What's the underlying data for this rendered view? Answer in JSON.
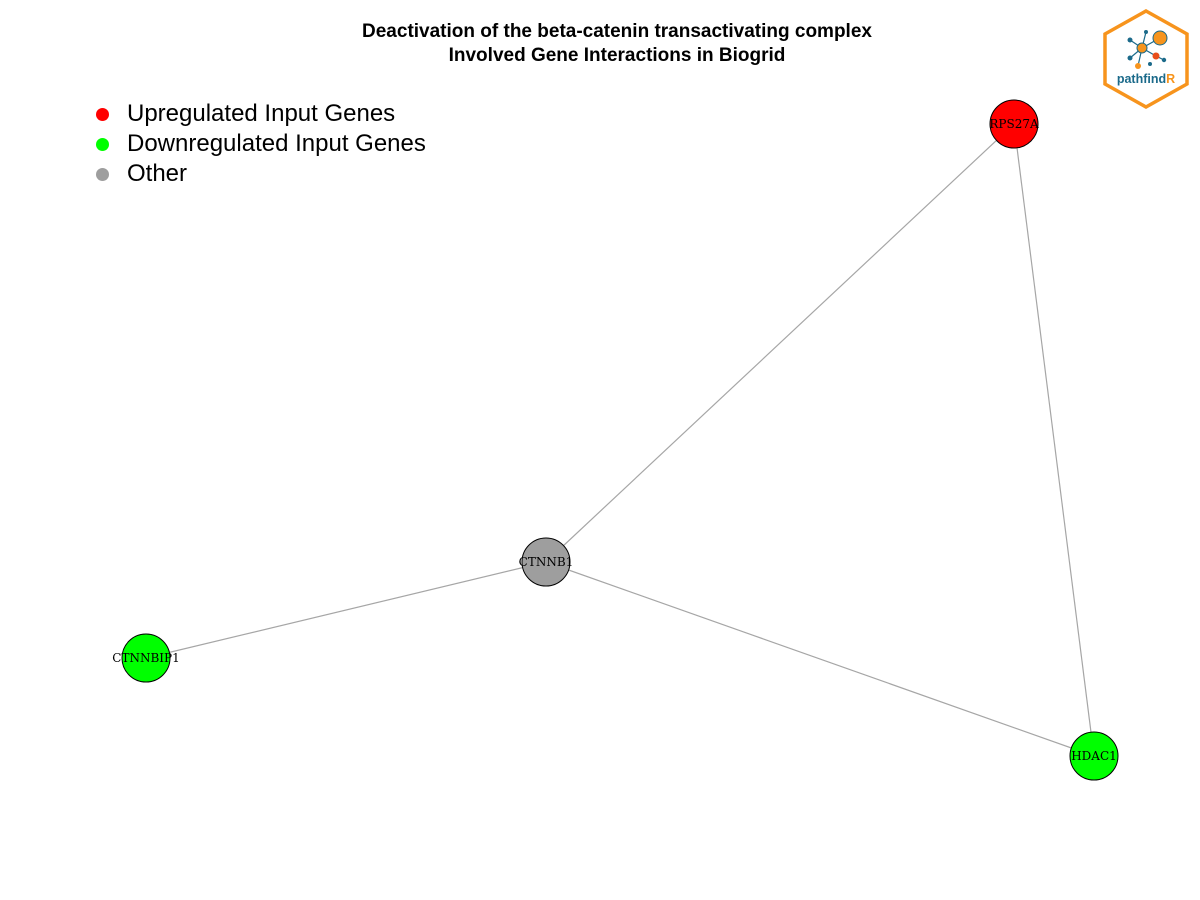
{
  "title": {
    "line1": "Deactivation of the beta-catenin transactivating complex",
    "line2": "Involved Gene Interactions in Biogrid"
  },
  "legend": [
    {
      "label": "Upregulated Input Genes",
      "color": "#ff0000"
    },
    {
      "label": "Downregulated Input Genes",
      "color": "#00ff00"
    },
    {
      "label": "Other",
      "color": "#9e9e9e"
    }
  ],
  "nodes": [
    {
      "id": "RPS27A",
      "label": "RPS27A",
      "category": "Upregulated Input Genes",
      "color": "#ff0000"
    },
    {
      "id": "CTNNB1",
      "label": "CTNNB1",
      "category": "Other",
      "color": "#9e9e9e"
    },
    {
      "id": "CTNNBIP1",
      "label": "CTNNBIP1",
      "category": "Downregulated Input Genes",
      "color": "#00ff00"
    },
    {
      "id": "HDAC1",
      "label": "HDAC1",
      "category": "Downregulated Input Genes",
      "color": "#00ff00"
    }
  ],
  "edges": [
    {
      "source": "CTNNB1",
      "target": "RPS27A"
    },
    {
      "source": "RPS27A",
      "target": "HDAC1"
    },
    {
      "source": "CTNNB1",
      "target": "CTNNBIP1"
    },
    {
      "source": "CTNNB1",
      "target": "HDAC1"
    }
  ],
  "edge_color": "#a6a6a6",
  "logo": {
    "text_main": "pathfind",
    "text_accent": "R",
    "border_color": "#f7941d",
    "text_color": "#1b6a8a",
    "accent_color": "#f7941d"
  }
}
